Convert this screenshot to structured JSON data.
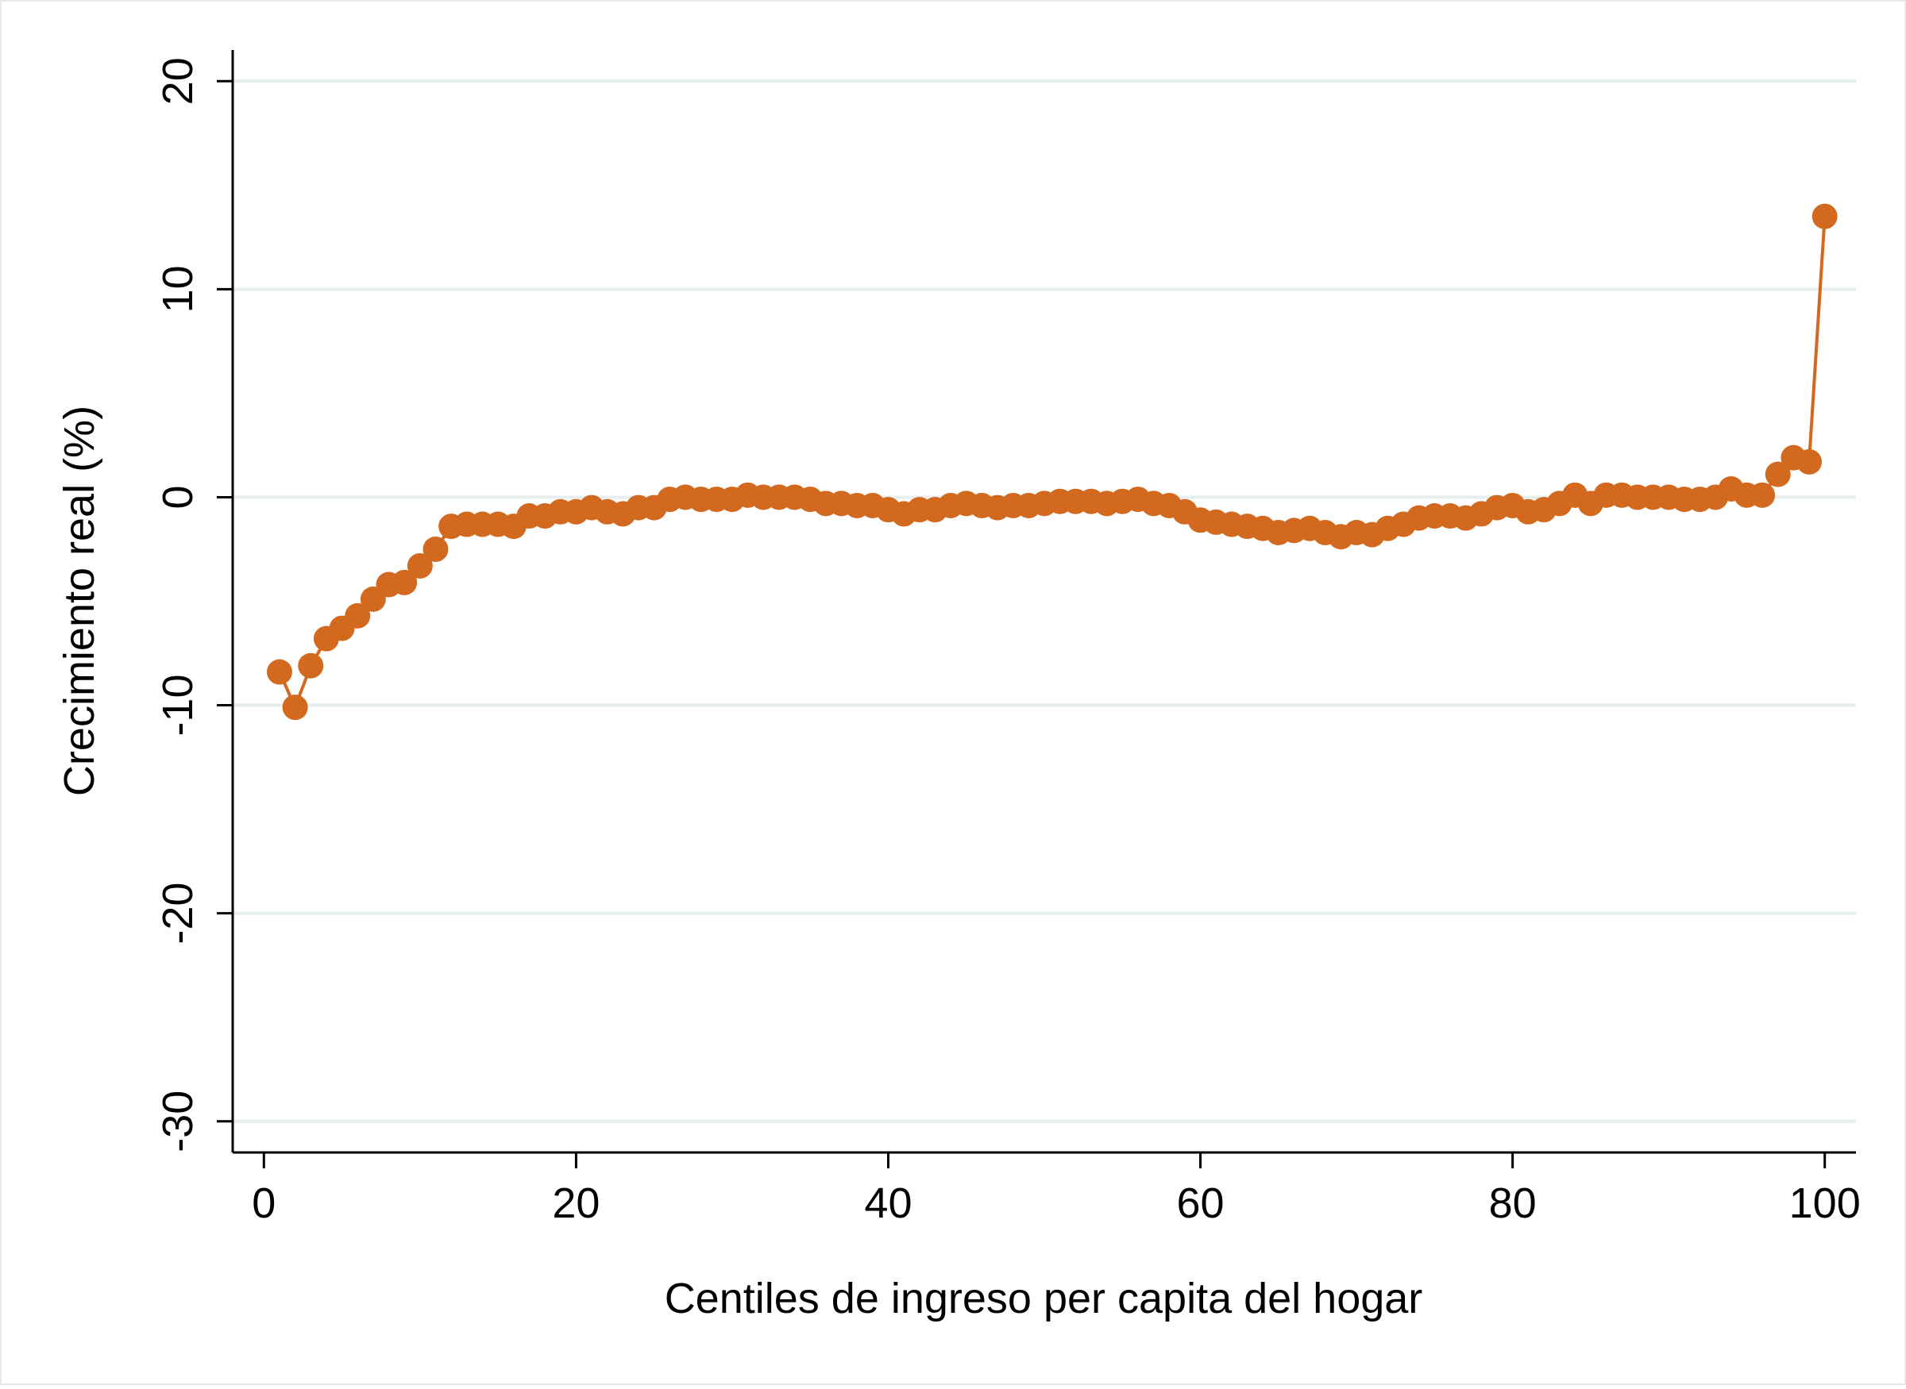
{
  "chart_data": {
    "type": "line",
    "title": "",
    "xlabel": "Centiles de ingreso per capita del hogar",
    "ylabel": "Crecimiento real (%)",
    "xlim": [
      -2,
      102
    ],
    "ylim": [
      -31.5,
      21.5
    ],
    "xticks": [
      0,
      20,
      40,
      60,
      80,
      100
    ],
    "yticks": [
      -30,
      -20,
      -10,
      0,
      10,
      20
    ],
    "grid": true,
    "legend": "none",
    "colors": {
      "series": "#d2691e",
      "grid": "#e6eeee",
      "axis": "#000000",
      "border": "#e8e8e8"
    },
    "series": [
      {
        "marker": "circle",
        "x": [
          1,
          2,
          3,
          4,
          5,
          6,
          7,
          8,
          9,
          10,
          11,
          12,
          13,
          14,
          15,
          16,
          17,
          18,
          19,
          20,
          21,
          22,
          23,
          24,
          25,
          26,
          27,
          28,
          29,
          30,
          31,
          32,
          33,
          34,
          35,
          36,
          37,
          38,
          39,
          40,
          41,
          42,
          43,
          44,
          45,
          46,
          47,
          48,
          49,
          50,
          51,
          52,
          53,
          54,
          55,
          56,
          57,
          58,
          59,
          60,
          61,
          62,
          63,
          64,
          65,
          66,
          67,
          68,
          69,
          70,
          71,
          72,
          73,
          74,
          75,
          76,
          77,
          78,
          79,
          80,
          81,
          82,
          83,
          84,
          85,
          86,
          87,
          88,
          89,
          90,
          91,
          92,
          93,
          94,
          95,
          96,
          97,
          98,
          99,
          100
        ],
        "y": [
          -8.4,
          -10.1,
          -8.1,
          -6.8,
          -6.3,
          -5.7,
          -4.9,
          -4.2,
          -4.1,
          -3.3,
          -2.5,
          -1.4,
          -1.3,
          -1.3,
          -1.3,
          -1.4,
          -0.9,
          -0.9,
          -0.7,
          -0.7,
          -0.5,
          -0.7,
          -0.8,
          -0.5,
          -0.5,
          -0.1,
          0.0,
          -0.1,
          -0.1,
          -0.1,
          0.1,
          0.0,
          0.0,
          0.0,
          -0.1,
          -0.3,
          -0.3,
          -0.4,
          -0.4,
          -0.6,
          -0.8,
          -0.6,
          -0.6,
          -0.4,
          -0.3,
          -0.4,
          -0.5,
          -0.4,
          -0.4,
          -0.3,
          -0.2,
          -0.2,
          -0.2,
          -0.3,
          -0.2,
          -0.1,
          -0.3,
          -0.4,
          -0.7,
          -1.1,
          -1.2,
          -1.3,
          -1.4,
          -1.5,
          -1.7,
          -1.6,
          -1.5,
          -1.7,
          -1.9,
          -1.7,
          -1.8,
          -1.5,
          -1.3,
          -1.0,
          -0.9,
          -0.9,
          -1.0,
          -0.8,
          -0.5,
          -0.4,
          -0.7,
          -0.6,
          -0.3,
          0.1,
          -0.3,
          0.1,
          0.1,
          0.0,
          0.0,
          0.0,
          -0.1,
          -0.1,
          0.0,
          0.4,
          0.1,
          0.1,
          1.1,
          1.9,
          1.7,
          13.5
        ]
      }
    ]
  }
}
